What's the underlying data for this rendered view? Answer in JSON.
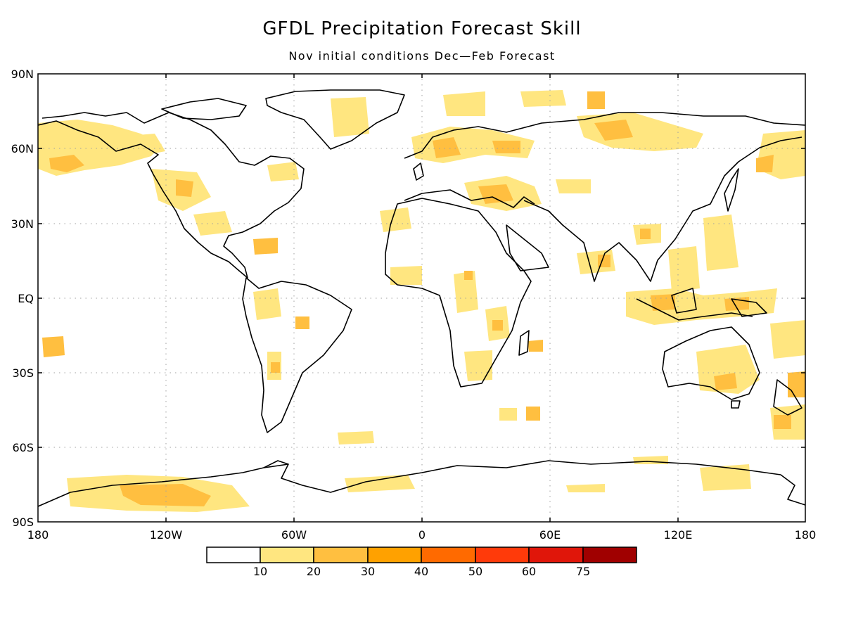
{
  "title": "GFDL Precipitation Forecast Skill",
  "subtitle": "Nov initial conditions  Dec—Feb Forecast",
  "map": {
    "lat_ticks": [
      "90N",
      "60N",
      "30N",
      "EQ",
      "30S",
      "60S",
      "90S"
    ],
    "lon_ticks": [
      "180",
      "120W",
      "60W",
      "0",
      "60E",
      "120E",
      "180"
    ]
  },
  "colorbar": {
    "colors": [
      "#ffffff",
      "#ffe680",
      "#ffbf40",
      "#ffa100",
      "#ff6a00",
      "#ff3a0a",
      "#e0160a",
      "#a00000"
    ],
    "labels": [
      "10",
      "20",
      "30",
      "40",
      "50",
      "60",
      "75"
    ]
  }
}
